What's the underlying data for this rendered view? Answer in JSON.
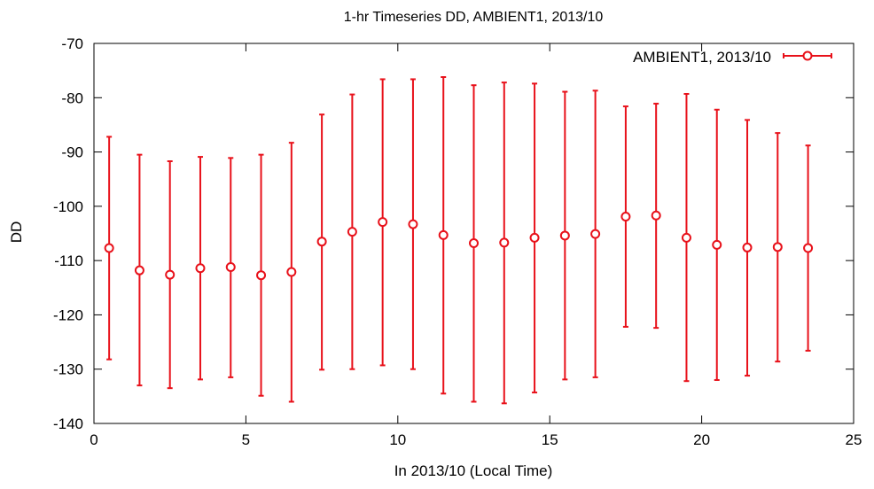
{
  "chart_data": {
    "type": "scatter",
    "title": "1-hr Timeseries DD, AMBIENT1, 2013/10",
    "xlabel": "In 2013/10 (Local Time)",
    "ylabel": "DD",
    "xlim": [
      0,
      25
    ],
    "ylim": [
      -140,
      -70
    ],
    "xticks": [
      0,
      5,
      10,
      15,
      20,
      25
    ],
    "yticks": [
      -70,
      -80,
      -90,
      -100,
      -110,
      -120,
      -130,
      -140
    ],
    "grid": false,
    "legend_position": "top-right",
    "color": "#e8111a",
    "series": [
      {
        "name": "AMBIENT1, 2013/10",
        "marker": "open-circle",
        "error_bars": true,
        "points": [
          {
            "x": 0.5,
            "y": -107.7,
            "low": -128.2,
            "high": -87.2
          },
          {
            "x": 1.5,
            "y": -111.8,
            "low": -133.0,
            "high": -90.5
          },
          {
            "x": 2.5,
            "y": -112.6,
            "low": -133.5,
            "high": -91.7
          },
          {
            "x": 3.5,
            "y": -111.4,
            "low": -131.9,
            "high": -90.9
          },
          {
            "x": 4.5,
            "y": -111.2,
            "low": -131.5,
            "high": -91.1
          },
          {
            "x": 5.5,
            "y": -112.7,
            "low": -134.9,
            "high": -90.5
          },
          {
            "x": 6.5,
            "y": -112.1,
            "low": -136.0,
            "high": -88.3
          },
          {
            "x": 7.5,
            "y": -106.5,
            "low": -130.1,
            "high": -83.1
          },
          {
            "x": 8.5,
            "y": -104.7,
            "low": -130.0,
            "high": -79.4
          },
          {
            "x": 9.5,
            "y": -102.9,
            "low": -129.3,
            "high": -76.6
          },
          {
            "x": 10.5,
            "y": -103.3,
            "low": -130.0,
            "high": -76.6
          },
          {
            "x": 11.5,
            "y": -105.3,
            "low": -134.5,
            "high": -76.2
          },
          {
            "x": 12.5,
            "y": -106.8,
            "low": -136.0,
            "high": -77.7
          },
          {
            "x": 13.5,
            "y": -106.7,
            "low": -136.3,
            "high": -77.2
          },
          {
            "x": 14.5,
            "y": -105.8,
            "low": -134.3,
            "high": -77.4
          },
          {
            "x": 15.5,
            "y": -105.4,
            "low": -131.9,
            "high": -78.9
          },
          {
            "x": 16.5,
            "y": -105.1,
            "low": -131.5,
            "high": -78.7
          },
          {
            "x": 17.5,
            "y": -101.9,
            "low": -122.2,
            "high": -81.6
          },
          {
            "x": 18.5,
            "y": -101.7,
            "low": -122.4,
            "high": -81.1
          },
          {
            "x": 19.5,
            "y": -105.8,
            "low": -132.2,
            "high": -79.3
          },
          {
            "x": 20.5,
            "y": -107.1,
            "low": -132.0,
            "high": -82.2
          },
          {
            "x": 21.5,
            "y": -107.6,
            "low": -131.2,
            "high": -84.1
          },
          {
            "x": 22.5,
            "y": -107.5,
            "low": -128.6,
            "high": -86.5
          },
          {
            "x": 23.5,
            "y": -107.7,
            "low": -126.6,
            "high": -88.8
          }
        ]
      }
    ]
  }
}
